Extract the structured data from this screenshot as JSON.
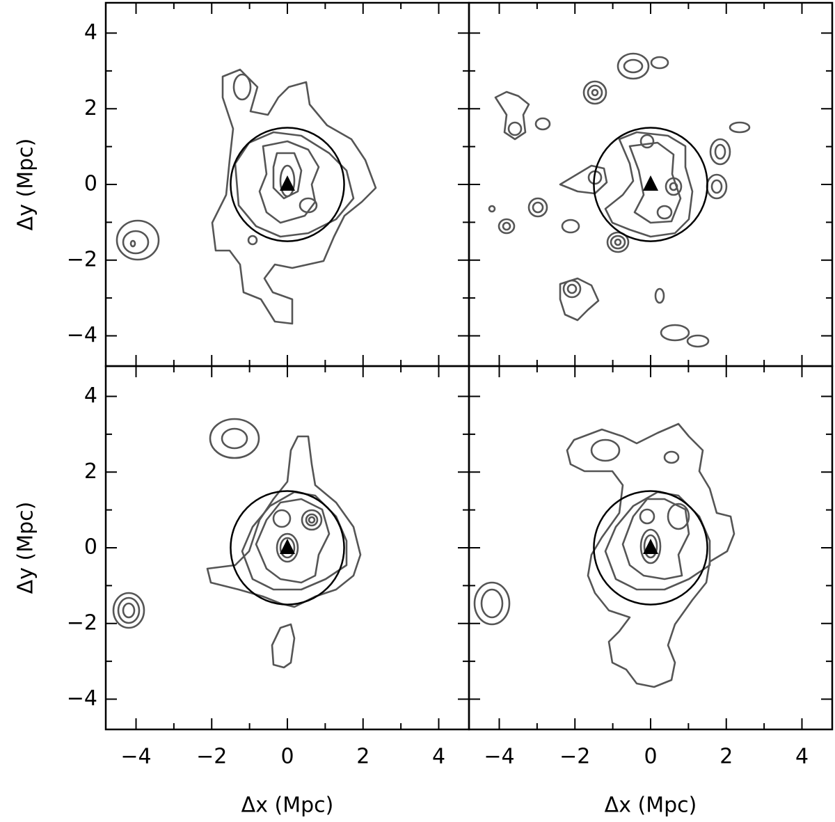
{
  "chart_data": [
    {
      "type": "contour",
      "xlim": [
        -4.8,
        4.8
      ],
      "ylim": [
        -4.8,
        4.8
      ],
      "xticks": [
        -4,
        -2,
        0,
        2,
        4
      ],
      "minor_xticks": [
        -3,
        -1,
        1,
        3
      ],
      "yticks": [
        {
          "value": -4,
          "label": "−4"
        },
        {
          "value": -2,
          "label": "−2"
        },
        0,
        2,
        4
      ],
      "minor_yticks": [
        -3,
        -1,
        1,
        3
      ],
      "xtick_labels": false,
      "ytick_labels": true,
      "ylabel": "Δy (Mpc)",
      "circle_radius": 1.5,
      "marker": {
        "x": 0,
        "y": 0
      }
    },
    {
      "type": "contour",
      "xlim": [
        -4.8,
        4.8
      ],
      "ylim": [
        -4.8,
        4.8
      ],
      "xticks": [
        -4,
        -2,
        0,
        2,
        4
      ],
      "minor_xticks": [
        -3,
        -1,
        1,
        3
      ],
      "yticks": [
        -4,
        -2,
        0,
        2,
        4
      ],
      "minor_yticks": [
        -3,
        -1,
        1,
        3
      ],
      "xtick_labels": false,
      "ytick_labels": false,
      "circle_radius": 1.5,
      "marker": {
        "x": 0,
        "y": 0
      }
    },
    {
      "type": "contour",
      "xlim": [
        -4.8,
        4.8
      ],
      "ylim": [
        -4.8,
        4.8
      ],
      "xticks": [
        {
          "value": -4,
          "label": "−4"
        },
        {
          "value": -2,
          "label": "−2"
        },
        0,
        2,
        4
      ],
      "minor_xticks": [
        -3,
        -1,
        1,
        3
      ],
      "yticks": [
        {
          "value": -4,
          "label": "−4"
        },
        {
          "value": -2,
          "label": "−2"
        },
        0,
        2,
        4
      ],
      "minor_yticks": [
        -3,
        -1,
        1,
        3
      ],
      "xtick_labels": true,
      "ytick_labels": true,
      "xlabel": "Δx (Mpc)",
      "ylabel": "Δy (Mpc)",
      "circle_radius": 1.5,
      "marker": {
        "x": 0,
        "y": 0
      }
    },
    {
      "type": "contour",
      "xlim": [
        -4.8,
        4.8
      ],
      "ylim": [
        -4.8,
        4.8
      ],
      "xticks": [
        {
          "value": -4,
          "label": "−4"
        },
        {
          "value": -2,
          "label": "−2"
        },
        0,
        2,
        4
      ],
      "minor_xticks": [
        -3,
        -1,
        1,
        3
      ],
      "yticks": [
        -4,
        -2,
        0,
        2,
        4
      ],
      "minor_yticks": [
        -3,
        -1,
        1,
        3
      ],
      "xtick_labels": true,
      "ytick_labels": false,
      "xlabel": "Δx (Mpc)",
      "circle_radius": 1.5,
      "marker": {
        "x": 0,
        "y": 0
      }
    }
  ]
}
